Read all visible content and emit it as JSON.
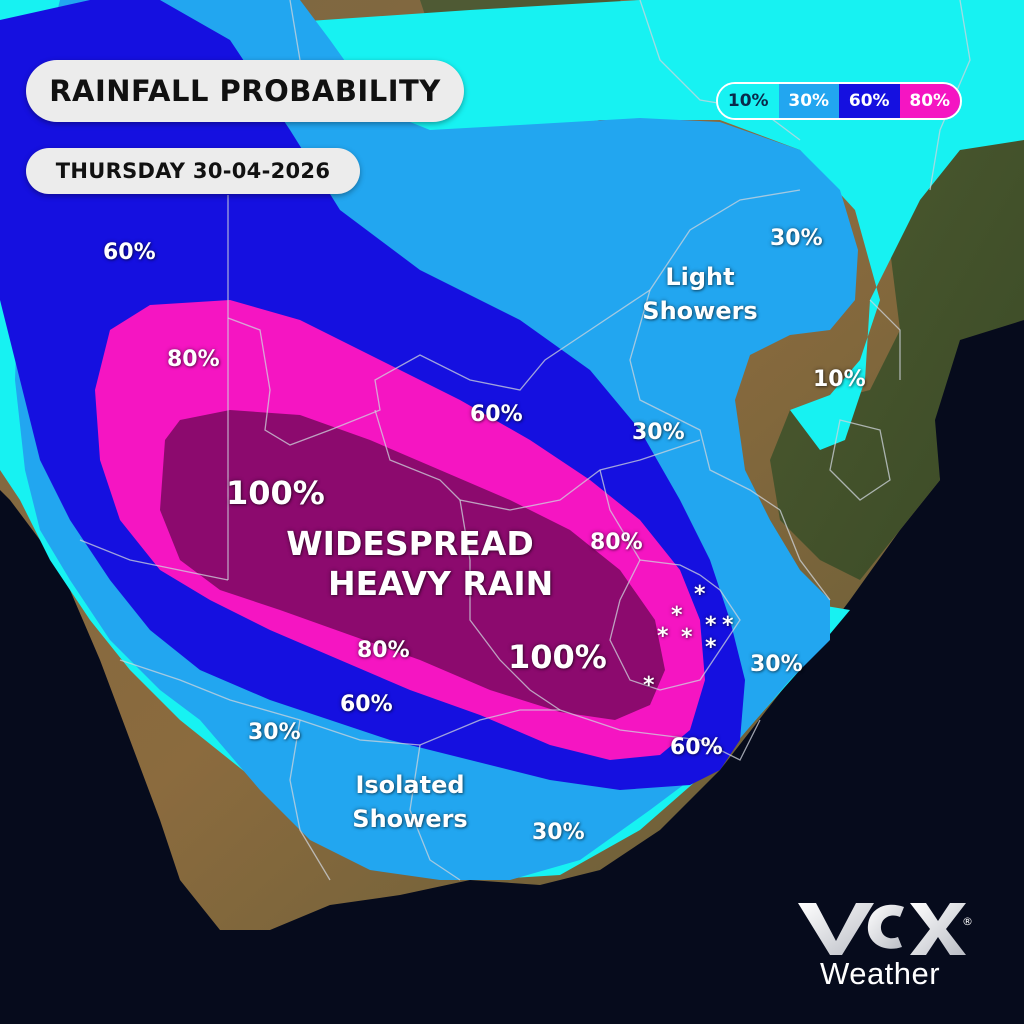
{
  "title": "RAINFALL PROBABILITY",
  "date": "THURSDAY 30-04-2026",
  "legend": [
    {
      "label": "10%",
      "color": "#17f2f2",
      "text_color": "#0a2a4a"
    },
    {
      "label": "30%",
      "color": "#22a6f0",
      "text_color": "#ffffff"
    },
    {
      "label": "60%",
      "color": "#1510e0",
      "text_color": "#ffffff"
    },
    {
      "label": "80%",
      "color": "#f515c2",
      "text_color": "#ffffff"
    }
  ],
  "zone_colors": {
    "p10": "#17f2f2",
    "p30": "#22a6f0",
    "p60": "#1510e0",
    "p80": "#f515c2",
    "p100": "#8c0a6e"
  },
  "labels": {
    "pct_60_west": "60%",
    "pct_80_west": "80%",
    "pct_60_north": "60%",
    "pct_30_northeast": "30%",
    "pct_30_central": "30%",
    "pct_10_east": "10%",
    "pct_100_west": "100%",
    "pct_80_east": "80%",
    "pct_100_center": "100%",
    "pct_80_south": "80%",
    "pct_60_south": "60%",
    "pct_30_southwest": "30%",
    "pct_30_east": "30%",
    "pct_60_southeast": "60%",
    "pct_30_south": "30%"
  },
  "headline": {
    "line1": "WIDESPREAD",
    "line2": "HEAVY RAIN"
  },
  "light_showers": {
    "line1": "Light",
    "line2": "Showers"
  },
  "isolated_showers": {
    "line1": "Isolated",
    "line2": "Showers"
  },
  "snow_marker": "*",
  "brand": {
    "wordmark": "Weather",
    "registered": "®"
  }
}
